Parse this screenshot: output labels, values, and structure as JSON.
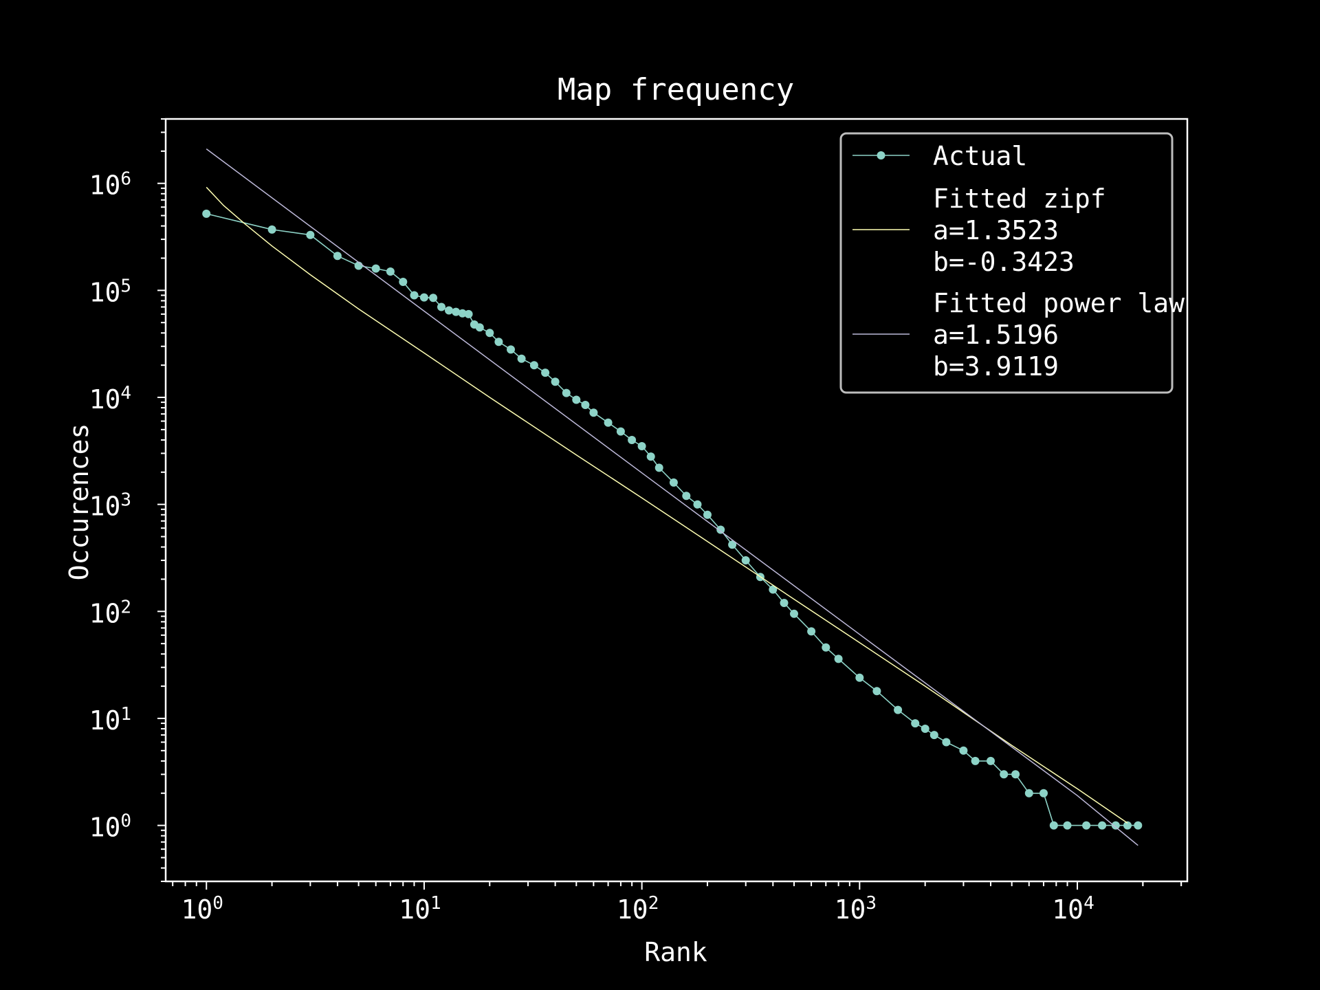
{
  "chart_data": {
    "type": "line",
    "title": "Map frequency",
    "xlabel": "Rank",
    "ylabel": "Occurences",
    "xscale": "log",
    "yscale": "log",
    "xlim": [
      0.65,
      32000
    ],
    "ylim": [
      0.3,
      4000000
    ],
    "x_ticks": [
      {
        "base": "10",
        "exp": "0",
        "value": 1
      },
      {
        "base": "10",
        "exp": "1",
        "value": 10
      },
      {
        "base": "10",
        "exp": "2",
        "value": 100
      },
      {
        "base": "10",
        "exp": "3",
        "value": 1000
      },
      {
        "base": "10",
        "exp": "4",
        "value": 10000
      }
    ],
    "y_ticks": [
      {
        "base": "10",
        "exp": "0",
        "value": 1
      },
      {
        "base": "10",
        "exp": "1",
        "value": 10
      },
      {
        "base": "10",
        "exp": "2",
        "value": 100
      },
      {
        "base": "10",
        "exp": "3",
        "value": 1000
      },
      {
        "base": "10",
        "exp": "4",
        "value": 10000
      },
      {
        "base": "10",
        "exp": "5",
        "value": 100000
      },
      {
        "base": "10",
        "exp": "6",
        "value": 1000000
      }
    ],
    "grid": false,
    "legend_position": "top-right",
    "colors": {
      "background": "#000000",
      "axes": "#ffffff",
      "actual": "#8dd3c7",
      "zipf": "#ffffb3",
      "power_law": "#bebada",
      "legend_border": "#bdbdbd"
    },
    "series": [
      {
        "name": "Actual",
        "marker": "circle",
        "x": [
          1,
          2,
          3,
          4,
          5,
          6,
          7,
          8,
          9,
          10,
          11,
          12,
          13,
          14,
          15,
          16,
          17,
          18,
          20,
          22,
          25,
          28,
          32,
          36,
          40,
          45,
          50,
          55,
          60,
          70,
          80,
          90,
          100,
          110,
          120,
          140,
          160,
          180,
          200,
          230,
          260,
          300,
          350,
          400,
          450,
          500,
          600,
          700,
          800,
          1000,
          1200,
          1500,
          1800,
          2000,
          2200,
          2500,
          3000,
          3400,
          4000,
          4600,
          5200,
          6000,
          7000,
          7800,
          9000,
          11000,
          13000,
          15000,
          17000,
          19000
        ],
        "y": [
          520000,
          370000,
          330000,
          210000,
          170000,
          160000,
          150000,
          120000,
          90000,
          86000,
          85000,
          70000,
          65000,
          63000,
          61000,
          60000,
          48000,
          45000,
          40000,
          33000,
          28000,
          23000,
          20000,
          17000,
          14000,
          11000,
          9500,
          8500,
          7200,
          5800,
          4800,
          4000,
          3500,
          2800,
          2200,
          1600,
          1200,
          1000,
          800,
          580,
          420,
          300,
          210,
          160,
          120,
          95,
          65,
          46,
          36,
          24,
          18,
          12,
          9,
          8,
          7,
          6,
          5,
          4,
          4,
          3,
          3,
          2,
          2,
          1,
          1,
          1,
          1,
          1,
          1,
          1
        ]
      },
      {
        "name": "Fitted zipf\na=1.3523\nb=-0.3423",
        "legend_lines": [
          "Fitted zipf",
          "a=1.3523",
          "b=-0.3423"
        ],
        "x": [
          1,
          1.2,
          1.5,
          2,
          3,
          5,
          10,
          20,
          50,
          100,
          200,
          500,
          1000,
          2000,
          5000,
          10000,
          17000
        ],
        "y": [
          920000,
          620000,
          420000,
          260000,
          140000,
          67000,
          26000,
          10000,
          2900,
          1150,
          450,
          130,
          51,
          20,
          5.6,
          2.2,
          1.05
        ]
      },
      {
        "name": "Fitted power law\na=1.5196\nb=3.9119",
        "legend_lines": [
          "Fitted power law",
          "a=1.5196",
          "b=3.9119"
        ],
        "x": [
          1,
          10,
          100,
          1000,
          10000,
          19000
        ],
        "y": [
          2100000,
          64000,
          1970,
          61,
          1.9,
          0.65
        ]
      }
    ]
  }
}
